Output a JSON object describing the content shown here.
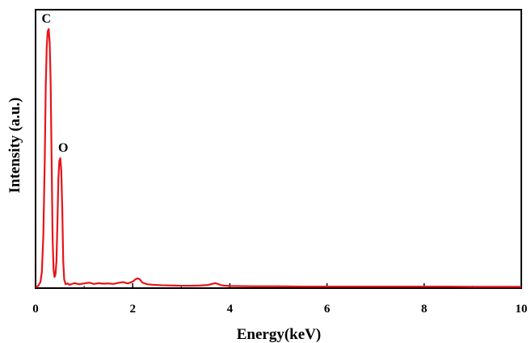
{
  "chart_data": {
    "type": "line",
    "xlabel": "Energy(keV)",
    "ylabel": "Intensity (a.u.)",
    "xlim": [
      0,
      10
    ],
    "ylim": [
      0,
      1
    ],
    "x_ticks": [
      "0",
      "2",
      "4",
      "6",
      "8",
      "10"
    ],
    "y_ticks_shown": false,
    "grid": false,
    "line_color": "#e8141a",
    "annotations": [
      {
        "text": "C",
        "x": 0.27,
        "y": 1.0
      },
      {
        "text": "O",
        "x": 0.52,
        "y": 0.5
      }
    ],
    "series": [
      {
        "x": [
          0.0,
          0.05,
          0.1,
          0.13,
          0.16,
          0.19,
          0.21,
          0.23,
          0.25,
          0.27,
          0.29,
          0.31,
          0.33,
          0.35,
          0.37,
          0.39,
          0.41,
          0.43,
          0.45,
          0.47,
          0.49,
          0.51,
          0.53,
          0.55,
          0.57,
          0.59,
          0.62,
          0.66,
          0.7,
          0.8,
          0.9,
          1.0,
          1.1,
          1.2,
          1.3,
          1.4,
          1.5,
          1.6,
          1.7,
          1.8,
          1.9,
          2.0,
          2.05,
          2.1,
          2.15,
          2.2,
          2.3,
          2.4,
          2.6,
          2.8,
          3.0,
          3.2,
          3.4,
          3.55,
          3.65,
          3.7,
          3.75,
          3.85,
          4.0,
          4.5,
          5.0,
          5.5,
          6.0,
          6.5,
          7.0,
          7.5,
          8.0,
          8.5,
          9.0,
          9.5,
          10.0
        ],
        "y": [
          0.0,
          0.005,
          0.02,
          0.06,
          0.2,
          0.5,
          0.78,
          0.93,
          0.99,
          1.0,
          0.95,
          0.8,
          0.5,
          0.2,
          0.07,
          0.04,
          0.05,
          0.1,
          0.25,
          0.42,
          0.49,
          0.5,
          0.45,
          0.3,
          0.1,
          0.03,
          0.012,
          0.015,
          0.01,
          0.016,
          0.012,
          0.015,
          0.018,
          0.013,
          0.016,
          0.014,
          0.015,
          0.013,
          0.017,
          0.02,
          0.015,
          0.022,
          0.03,
          0.035,
          0.03,
          0.018,
          0.012,
          0.01,
          0.008,
          0.007,
          0.006,
          0.006,
          0.007,
          0.009,
          0.014,
          0.016,
          0.013,
          0.007,
          0.005,
          0.004,
          0.004,
          0.003,
          0.003,
          0.003,
          0.003,
          0.003,
          0.003,
          0.003,
          0.002,
          0.002,
          0.002
        ]
      }
    ]
  }
}
